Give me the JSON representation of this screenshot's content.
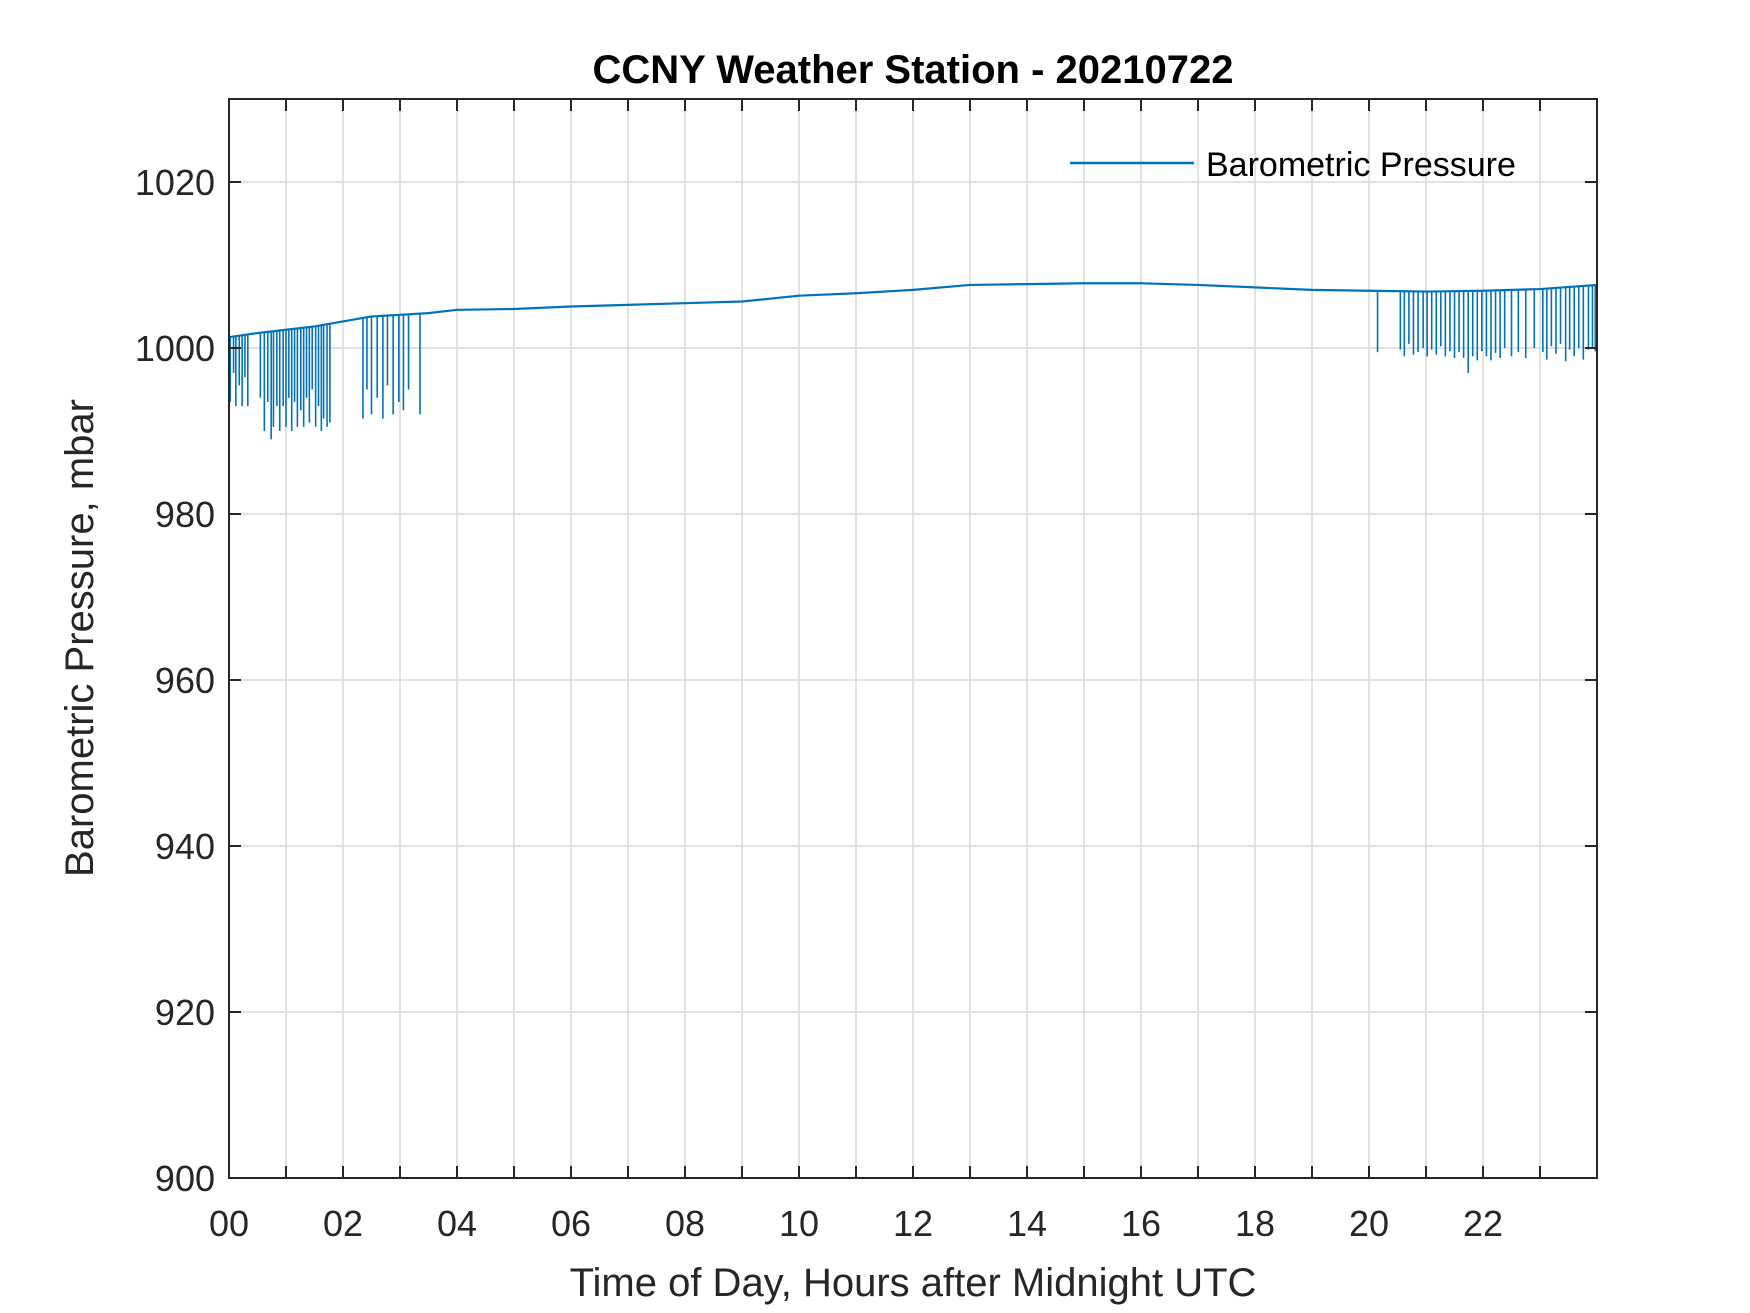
{
  "colors": {
    "series": "#0072BD",
    "grid": "#d9d9d9",
    "axes": "#262626",
    "background": "#ffffff"
  },
  "chart_data": {
    "type": "line",
    "title": "CCNY Weather Station - 20210722",
    "xlabel": "Time of Day, Hours after Midnight UTC",
    "ylabel": "Barometric Pressure, mbar",
    "xlim": [
      0,
      24
    ],
    "ylim": [
      900,
      1030
    ],
    "x_ticks": [
      0,
      2,
      4,
      6,
      8,
      10,
      12,
      14,
      16,
      18,
      20,
      22
    ],
    "x_tick_labels": [
      "00",
      "02",
      "04",
      "06",
      "08",
      "10",
      "12",
      "14",
      "16",
      "18",
      "20",
      "22"
    ],
    "x_minor_ticks": [
      1,
      3,
      5,
      7,
      9,
      11,
      13,
      15,
      17,
      19,
      21,
      23
    ],
    "y_ticks": [
      900,
      920,
      940,
      960,
      980,
      1000,
      1020
    ],
    "y_tick_labels": [
      "900",
      "920",
      "940",
      "960",
      "980",
      "1000",
      "1020"
    ],
    "grid": true,
    "legend": {
      "position": "top-right",
      "entries": [
        "Barometric Pressure"
      ]
    },
    "series": [
      {
        "name": "Barometric Pressure",
        "baseline": {
          "x": [
            0,
            0.5,
            1.0,
            1.5,
            2.0,
            2.5,
            3.0,
            3.5,
            4.0,
            5.0,
            6.0,
            7.0,
            8.0,
            9.0,
            10.0,
            11.0,
            12.0,
            13.0,
            14.0,
            15.0,
            16.0,
            17.0,
            18.0,
            19.0,
            20.0,
            21.0,
            22.0,
            23.0,
            24.0
          ],
          "y": [
            1001.3,
            1001.8,
            1002.2,
            1002.6,
            1003.2,
            1003.8,
            1004.0,
            1004.2,
            1004.6,
            1004.7,
            1005.0,
            1005.2,
            1005.4,
            1005.6,
            1006.3,
            1006.6,
            1007.0,
            1007.6,
            1007.7,
            1007.8,
            1007.8,
            1007.6,
            1007.3,
            1007.0,
            1006.9,
            1006.8,
            1006.9,
            1007.1,
            1007.6
          ]
        },
        "spikes": [
          [
            0.02,
            993.5
          ],
          [
            0.08,
            997.0
          ],
          [
            0.12,
            993.0
          ],
          [
            0.18,
            995.5
          ],
          [
            0.23,
            993.0
          ],
          [
            0.28,
            996.5
          ],
          [
            0.33,
            993.0
          ],
          [
            0.55,
            994.0
          ],
          [
            0.62,
            990.0
          ],
          [
            0.68,
            993.5
          ],
          [
            0.74,
            989.0
          ],
          [
            0.78,
            990.5
          ],
          [
            0.84,
            993.0
          ],
          [
            0.89,
            990.0
          ],
          [
            0.95,
            993.0
          ],
          [
            1.0,
            990.5
          ],
          [
            1.05,
            994.0
          ],
          [
            1.1,
            990.0
          ],
          [
            1.15,
            993.5
          ],
          [
            1.2,
            990.5
          ],
          [
            1.26,
            992.5
          ],
          [
            1.31,
            990.5
          ],
          [
            1.36,
            994.0
          ],
          [
            1.41,
            991.0
          ],
          [
            1.46,
            995.0
          ],
          [
            1.52,
            990.5
          ],
          [
            1.57,
            993.0
          ],
          [
            1.62,
            990.0
          ],
          [
            1.66,
            991.5
          ],
          [
            1.72,
            990.5
          ],
          [
            1.77,
            991.0
          ],
          [
            2.35,
            991.5
          ],
          [
            2.42,
            995.0
          ],
          [
            2.5,
            992.0
          ],
          [
            2.6,
            994.0
          ],
          [
            2.7,
            991.5
          ],
          [
            2.78,
            995.5
          ],
          [
            2.88,
            992.0
          ],
          [
            2.98,
            993.5
          ],
          [
            3.06,
            992.5
          ],
          [
            3.15,
            995.0
          ],
          [
            3.35,
            992.0
          ],
          [
            20.15,
            999.5
          ],
          [
            20.55,
            999.8
          ],
          [
            20.62,
            999.0
          ],
          [
            20.7,
            1000.5
          ],
          [
            20.78,
            999.2
          ],
          [
            20.86,
            999.5
          ],
          [
            20.95,
            1000.0
          ],
          [
            21.02,
            999.0
          ],
          [
            21.1,
            999.8
          ],
          [
            21.18,
            999.2
          ],
          [
            21.26,
            1000.2
          ],
          [
            21.34,
            999.0
          ],
          [
            21.42,
            999.6
          ],
          [
            21.5,
            998.8
          ],
          [
            21.58,
            999.5
          ],
          [
            21.66,
            998.8
          ],
          [
            21.74,
            997.0
          ],
          [
            21.82,
            999.0
          ],
          [
            21.9,
            998.5
          ],
          [
            21.98,
            999.6
          ],
          [
            22.06,
            999.0
          ],
          [
            22.14,
            998.5
          ],
          [
            22.22,
            999.4
          ],
          [
            22.3,
            998.8
          ],
          [
            22.38,
            1000.0
          ],
          [
            22.5,
            999.0
          ],
          [
            22.62,
            999.5
          ],
          [
            22.75,
            998.8
          ],
          [
            22.9,
            1000.0
          ],
          [
            23.05,
            999.5
          ],
          [
            23.12,
            998.6
          ],
          [
            23.2,
            1000.2
          ],
          [
            23.28,
            999.3
          ],
          [
            23.36,
            1000.5
          ],
          [
            23.45,
            998.4
          ],
          [
            23.52,
            999.8
          ],
          [
            23.6,
            999.0
          ],
          [
            23.68,
            1000.0
          ],
          [
            23.76,
            998.6
          ],
          [
            23.85,
            999.8
          ],
          [
            23.92,
            1000.0
          ],
          [
            23.97,
            999.6
          ]
        ]
      }
    ]
  }
}
